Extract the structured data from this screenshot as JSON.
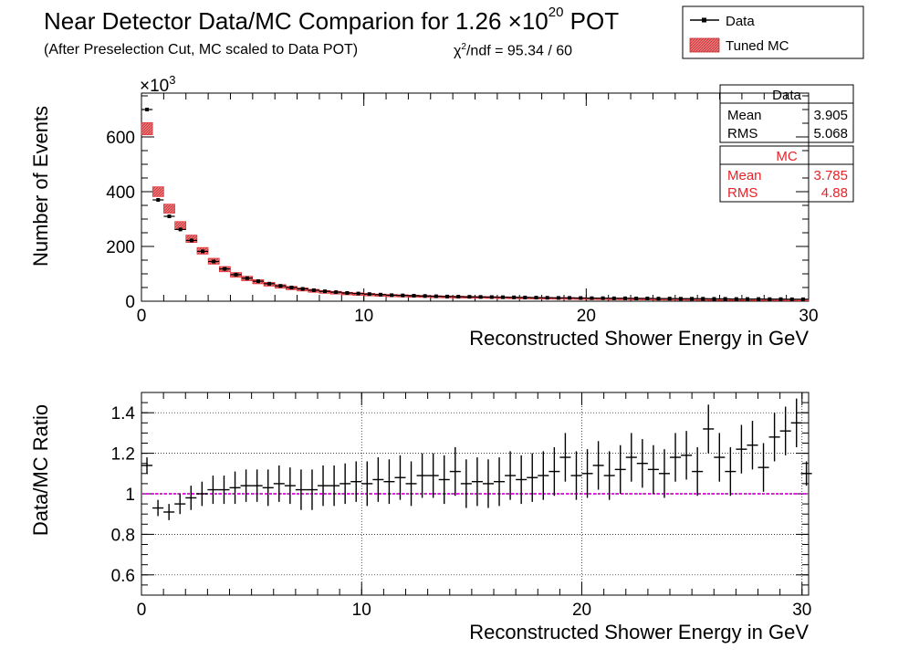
{
  "title": {
    "main_prefix": "Near Detector Data/MC Comparion for 1.26 ×10",
    "main_exp": "20",
    "main_suffix": " POT",
    "subtitle": "(After Preselection Cut, MC scaled to Data POT)",
    "chi2_prefix": "χ",
    "chi2_exp": "2",
    "chi2_suffix": "/ndf = 95.34 / 60"
  },
  "legend": {
    "data_label": "Data",
    "mc_label": "Tuned MC"
  },
  "stats": {
    "data": {
      "title": "Data",
      "mean_label": "Mean",
      "mean": "3.905",
      "rms_label": "RMS",
      "rms": "5.068"
    },
    "mc": {
      "title": "MC",
      "mean_label": "Mean",
      "mean": "3.785",
      "rms_label": "RMS",
      "rms": "4.88"
    }
  },
  "colors": {
    "data": "#000000",
    "mc": "#e8232a",
    "mc_fill": "#d98080",
    "ratio_line": "#e020e0"
  },
  "chart_data": [
    {
      "type": "bar",
      "name": "top",
      "xlabel": "Reconstructed Shower Energy in GeV",
      "ylabel": "Number of Events",
      "exponent_label": "×10",
      "exponent_value": "3",
      "xlim": [
        0,
        30
      ],
      "ylim": [
        0,
        760
      ],
      "xticks": [
        0,
        10,
        20,
        30
      ],
      "yticks": [
        0,
        200,
        400,
        600
      ],
      "bin_width": 0.5,
      "series": [
        {
          "name": "Data",
          "style": "points",
          "values": [
            700,
            370,
            310,
            262,
            222,
            182,
            145,
            118,
            97,
            84,
            73,
            64,
            56,
            50,
            45,
            40,
            36,
            33,
            30,
            28,
            26,
            24,
            22,
            21,
            20,
            19,
            18,
            17,
            16.5,
            16,
            15.5,
            15,
            14.5,
            14,
            13.5,
            13,
            12.5,
            12,
            12,
            11.5,
            11,
            11,
            10.5,
            10.5,
            10,
            10,
            9.5,
            9.5,
            9,
            9,
            9,
            8.5,
            8.5,
            8,
            8,
            8,
            7.5,
            7.5,
            7,
            7
          ]
        },
        {
          "name": "Tuned MC",
          "style": "band",
          "values": [
            630,
            400,
            338,
            276,
            228,
            184,
            146,
            117,
            96,
            83,
            71,
            62,
            54,
            48,
            43,
            38,
            34,
            31,
            28,
            26,
            24,
            22,
            20.5,
            19.5,
            18.5,
            17.5,
            16.5,
            15.8,
            15,
            14.5,
            14,
            13.5,
            13,
            12.5,
            12,
            11.5,
            11.2,
            10.8,
            10.5,
            10.2,
            9.8,
            9.5,
            9.2,
            9,
            8.8,
            8.5,
            8.2,
            8,
            7.8,
            7.6,
            7.4,
            7.2,
            7,
            6.8,
            6.6,
            6.4,
            6.2,
            6,
            5.8,
            5.6
          ]
        }
      ]
    },
    {
      "type": "scatter",
      "name": "ratio",
      "xlabel": "Reconstructed Shower Energy in GeV",
      "ylabel": "Data/MC Ratio",
      "xlim": [
        0,
        30.3
      ],
      "ylim": [
        0.5,
        1.5
      ],
      "xticks": [
        0,
        10,
        20,
        30
      ],
      "yticks": [
        0.6,
        0.8,
        1,
        1.2,
        1.4
      ],
      "reference_line": 1,
      "grid": true,
      "x": [
        0.25,
        0.75,
        1.25,
        1.75,
        2.25,
        2.75,
        3.25,
        3.75,
        4.25,
        4.75,
        5.25,
        5.75,
        6.25,
        6.75,
        7.25,
        7.75,
        8.25,
        8.75,
        9.25,
        9.75,
        10.25,
        10.75,
        11.25,
        11.75,
        12.25,
        12.75,
        13.25,
        13.75,
        14.25,
        14.75,
        15.25,
        15.75,
        16.25,
        16.75,
        17.25,
        17.75,
        18.25,
        18.75,
        19.25,
        19.75,
        20.25,
        20.75,
        21.25,
        21.75,
        22.25,
        22.75,
        23.25,
        23.75,
        24.25,
        24.75,
        25.25,
        25.75,
        26.25,
        26.75,
        27.25,
        27.75,
        28.25,
        28.75,
        29.25,
        29.75,
        30.2
      ],
      "y": [
        1.14,
        0.93,
        0.91,
        0.95,
        0.98,
        1.0,
        1.02,
        1.02,
        1.03,
        1.04,
        1.04,
        1.03,
        1.05,
        1.04,
        1.02,
        1.02,
        1.04,
        1.04,
        1.05,
        1.06,
        1.05,
        1.07,
        1.06,
        1.08,
        1.05,
        1.09,
        1.09,
        1.07,
        1.11,
        1.05,
        1.06,
        1.05,
        1.06,
        1.09,
        1.07,
        1.08,
        1.09,
        1.11,
        1.18,
        1.09,
        1.1,
        1.14,
        1.09,
        1.12,
        1.18,
        1.15,
        1.12,
        1.1,
        1.18,
        1.19,
        1.11,
        1.32,
        1.18,
        1.11,
        1.22,
        1.24,
        1.13,
        1.28,
        1.31,
        1.35,
        1.1
      ],
      "yerr": [
        0.04,
        0.04,
        0.04,
        0.05,
        0.06,
        0.06,
        0.07,
        0.07,
        0.08,
        0.08,
        0.08,
        0.09,
        0.09,
        0.09,
        0.1,
        0.1,
        0.1,
        0.1,
        0.1,
        0.1,
        0.11,
        0.11,
        0.11,
        0.11,
        0.11,
        0.11,
        0.11,
        0.12,
        0.12,
        0.12,
        0.12,
        0.12,
        0.12,
        0.12,
        0.12,
        0.12,
        0.12,
        0.12,
        0.12,
        0.12,
        0.12,
        0.12,
        0.12,
        0.12,
        0.12,
        0.12,
        0.12,
        0.12,
        0.12,
        0.12,
        0.12,
        0.12,
        0.12,
        0.12,
        0.12,
        0.12,
        0.12,
        0.12,
        0.12,
        0.12,
        0.06
      ]
    }
  ]
}
